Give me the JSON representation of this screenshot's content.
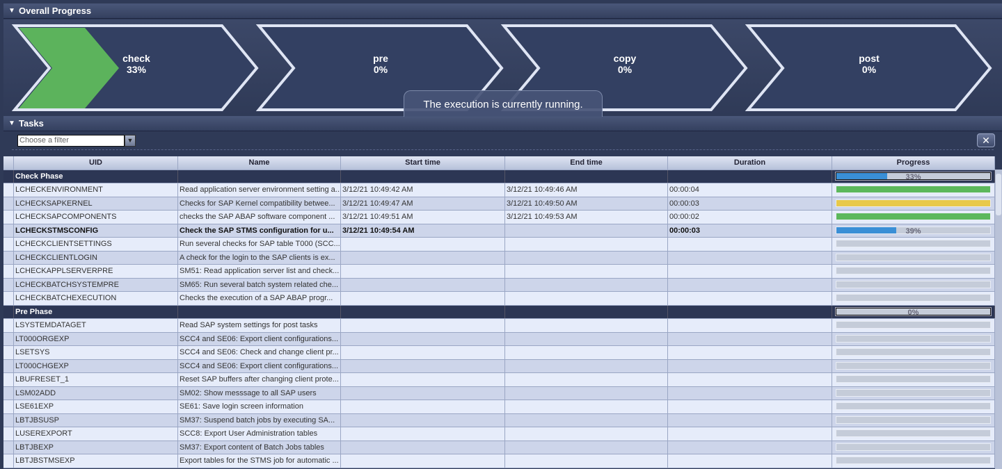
{
  "sections": {
    "overall": "Overall Progress",
    "tasks": "Tasks"
  },
  "phases": [
    {
      "name": "check",
      "percent_label": "33%",
      "progress": 33
    },
    {
      "name": "pre",
      "percent_label": "0%",
      "progress": 0
    },
    {
      "name": "copy",
      "percent_label": "0%",
      "progress": 0
    },
    {
      "name": "post",
      "percent_label": "0%",
      "progress": 0
    }
  ],
  "status_message": "The execution is currently running.",
  "filter": {
    "placeholder": "Choose a filter"
  },
  "icons": {
    "collapse": "triangle-down-icon",
    "dropdown": "chevron-down-icon",
    "clear_filter": "clear-filter-icon"
  },
  "colors": {
    "done": "#5cb85c",
    "warning": "#e8c94a",
    "running": "#3a8fd6",
    "pending": "#c5ccd9",
    "phase_fill": "#5cb35c"
  },
  "table": {
    "columns": [
      "UID",
      "Name",
      "Start time",
      "End time",
      "Duration",
      "Progress"
    ],
    "rows": [
      {
        "group": true,
        "uid": "Check Phase",
        "progress": 33,
        "label": "33%"
      },
      {
        "uid": "LCHECKENVIRONMENT",
        "name": "Read application server environment setting a...",
        "start": "3/12/21 10:49:42 AM",
        "end": "3/12/21 10:49:46 AM",
        "duration": "00:00:04",
        "status": "done"
      },
      {
        "uid": "LCHECKSAPKERNEL",
        "name": "Checks for SAP Kernel compatibility betwee...",
        "start": "3/12/21 10:49:47 AM",
        "end": "3/12/21 10:49:50 AM",
        "duration": "00:00:03",
        "status": "warning"
      },
      {
        "uid": "LCHECKSAPCOMPONENTS",
        "name": "checks the SAP ABAP software component ...",
        "start": "3/12/21 10:49:51 AM",
        "end": "3/12/21 10:49:53 AM",
        "duration": "00:00:02",
        "status": "done"
      },
      {
        "uid": "LCHECKSTMSCONFIG",
        "name": "Check the SAP STMS configuration for u...",
        "start": "3/12/21 10:49:54 AM",
        "end": "",
        "duration": "00:00:03",
        "status": "running",
        "progress": 39,
        "label": "39%"
      },
      {
        "uid": "LCHECKCLIENTSETTINGS",
        "name": "Run several checks for SAP table T000 (SCC...",
        "status": "pending"
      },
      {
        "uid": "LCHECKCLIENTLOGIN",
        "name": "A check for the login to the SAP clients is ex...",
        "status": "pending"
      },
      {
        "uid": "LCHECKAPPLSERVERPRE",
        "name": "SM51: Read application server list and check...",
        "status": "pending"
      },
      {
        "uid": "LCHECKBATCHSYSTEMPRE",
        "name": "SM65: Run several batch system related che...",
        "status": "pending"
      },
      {
        "uid": "LCHECKBATCHEXECUTION",
        "name": "Checks the execution of a SAP ABAP progr...",
        "status": "pending"
      },
      {
        "group": true,
        "uid": "Pre Phase",
        "progress": 0,
        "label": "0%"
      },
      {
        "uid": "LSYSTEMDATAGET",
        "name": "Read SAP system settings for post tasks",
        "status": "pending"
      },
      {
        "uid": "LT000ORGEXP",
        "name": "SCC4 and SE06: Export client configurations...",
        "status": "pending"
      },
      {
        "uid": "LSETSYS",
        "name": "SCC4 and SE06: Check and change client pr...",
        "status": "pending"
      },
      {
        "uid": "LT000CHGEXP",
        "name": "SCC4 and SE06: Export client configurations...",
        "status": "pending"
      },
      {
        "uid": "LBUFRESET_1",
        "name": "Reset SAP buffers after changing client prote...",
        "status": "pending"
      },
      {
        "uid": "LSM02ADD",
        "name": "SM02: Show messsage to all SAP users",
        "status": "pending"
      },
      {
        "uid": "LSE61EXP",
        "name": "SE61: Save login screen information",
        "status": "pending"
      },
      {
        "uid": "LBTJBSUSP",
        "name": "SM37: Suspend batch jobs by executing SA...",
        "status": "pending"
      },
      {
        "uid": "LUSEREXPORT",
        "name": "SCC8: Export User Administration tables",
        "status": "pending"
      },
      {
        "uid": "LBTJBEXP",
        "name": "SM37: Export content of Batch Jobs tables",
        "status": "pending"
      },
      {
        "uid": "LBTJBSTMSEXP",
        "name": "Export tables for the STMS job for automatic ...",
        "status": "pending"
      }
    ]
  }
}
